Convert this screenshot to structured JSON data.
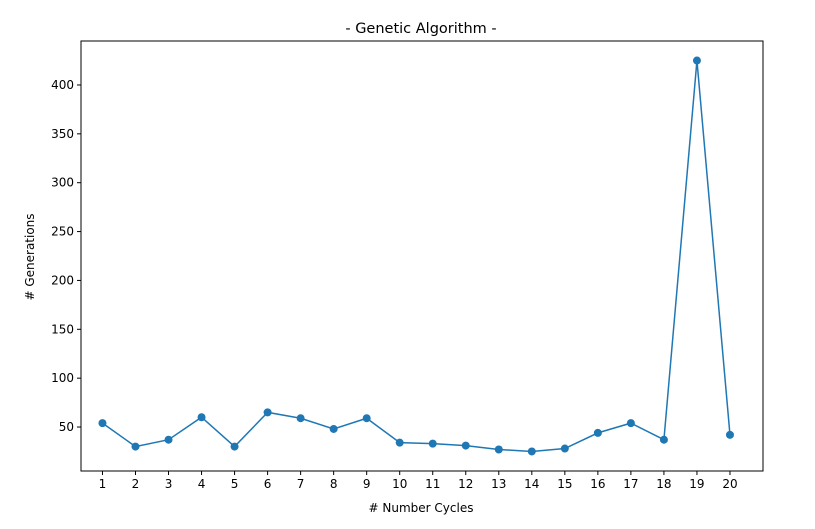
{
  "chart_data": {
    "type": "line",
    "title": "- Genetic Algorithm -",
    "xlabel": "# Number Cycles",
    "ylabel": "# Generations",
    "x": [
      1,
      2,
      3,
      4,
      5,
      6,
      7,
      8,
      9,
      10,
      11,
      12,
      13,
      14,
      15,
      16,
      17,
      18,
      19,
      20
    ],
    "series": [
      {
        "values": [
          54,
          30,
          37,
          60,
          30,
          65,
          59,
          48,
          59,
          34,
          33,
          31,
          27,
          25,
          28,
          44,
          54,
          37,
          425,
          42
        ],
        "color": "#1f77b4",
        "marker": "circle"
      }
    ],
    "xticks": [
      "1",
      "2",
      "3",
      "4",
      "5",
      "6",
      "7",
      "8",
      "9",
      "10",
      "11",
      "12",
      "13",
      "14",
      "15",
      "16",
      "17",
      "18",
      "19",
      "20"
    ],
    "yticks": [
      50,
      100,
      150,
      200,
      250,
      300,
      350,
      400
    ],
    "xlim": [
      0.35,
      21.0
    ],
    "ylim": [
      5,
      445
    ],
    "grid": false,
    "legend": "none"
  }
}
